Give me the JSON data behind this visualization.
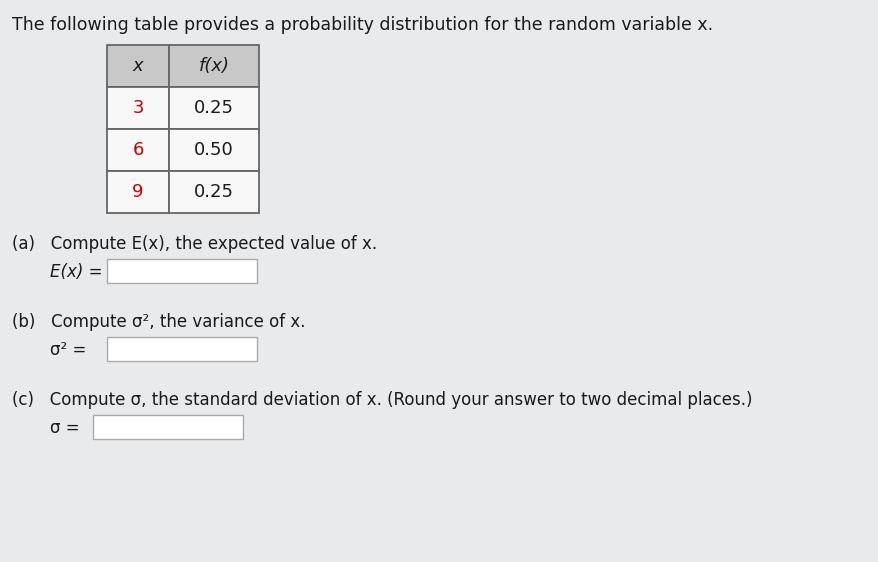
{
  "title": "The following table provides a probability distribution for the random variable x.",
  "title_fontsize": 12.5,
  "title_color": "#1a1a1a",
  "table_x_values": [
    "x",
    "3",
    "6",
    "9"
  ],
  "table_fx_values": [
    "f(x)",
    "0.25",
    "0.50",
    "0.25"
  ],
  "table_x_color": "#cc0000",
  "table_fx_color": "#1a1a1a",
  "table_header_bg": "#c8c8c8",
  "table_cell_bg": "#f8f8f8",
  "table_border_color": "#666666",
  "part_a_label": "(a)   Compute E(x), the expected value of x.",
  "part_a_eq": "E(x) =",
  "part_b_label": "(b)   Compute σ², the variance of x.",
  "part_b_eq": "σ² =",
  "part_c_label": "(c)   Compute σ, the standard deviation of x. (Round your answer to two decimal places.)",
  "part_c_eq": "σ =",
  "input_box_color": "#ffffff",
  "input_box_border": "#aaaaaa",
  "text_fontsize": 12,
  "eq_fontsize": 12,
  "overall_bg": "#e8eaec"
}
